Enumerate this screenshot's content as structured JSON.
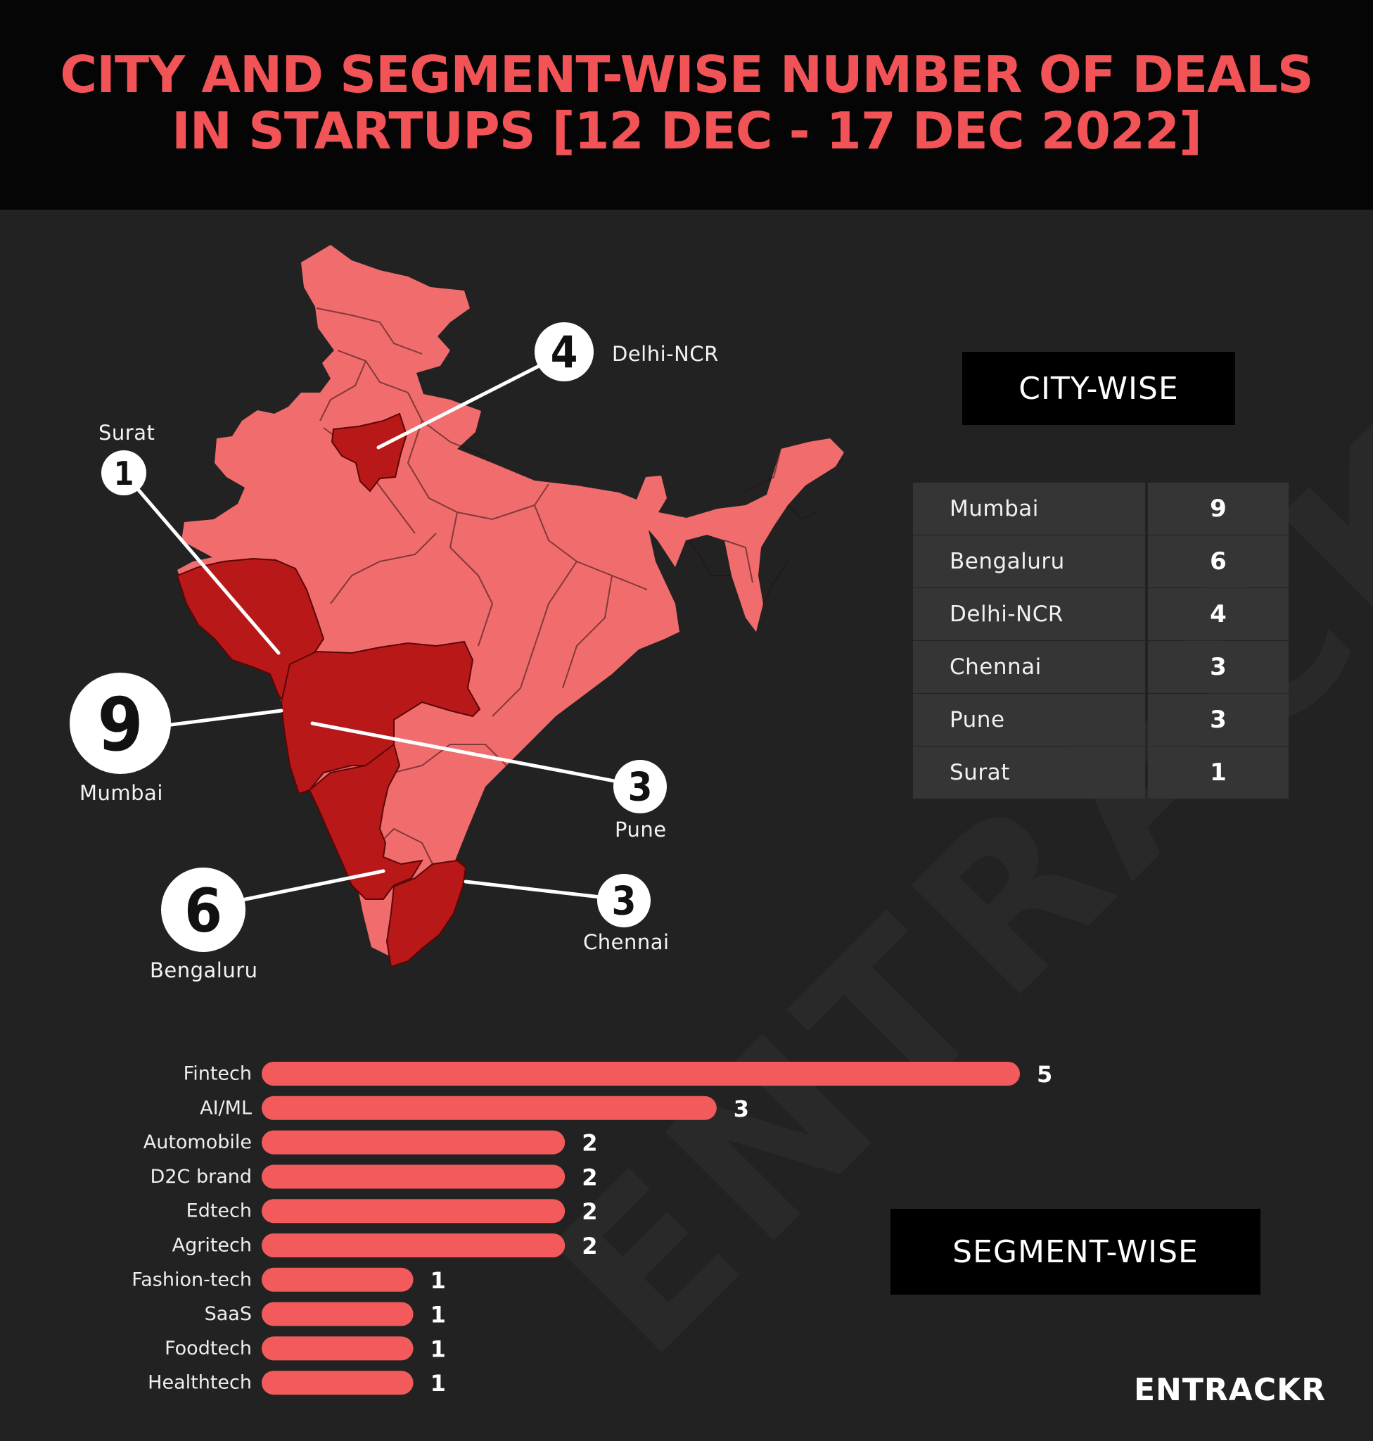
{
  "header": {
    "title_line1": "CITY AND SEGMENT-WISE NUMBER OF DEALS",
    "title_line2": "IN STARTUPS [12 DEC - 17 DEC 2022]"
  },
  "colors": {
    "title": "#f15356",
    "map_base": "#f16c6d",
    "map_highlight": "#b91818",
    "bar": "#f25a5b",
    "background": "#222222"
  },
  "map": {
    "bubbles": [
      {
        "city": "Delhi-NCR",
        "value": "4"
      },
      {
        "city": "Surat",
        "value": "1"
      },
      {
        "city": "Mumbai",
        "value": "9"
      },
      {
        "city": "Pune",
        "value": "3"
      },
      {
        "city": "Bengaluru",
        "value": "6"
      },
      {
        "city": "Chennai",
        "value": "3"
      }
    ]
  },
  "city_panel": {
    "label": "CITY-WISE",
    "rows": [
      {
        "city": "Mumbai",
        "value": "9"
      },
      {
        "city": "Bengaluru",
        "value": "6"
      },
      {
        "city": "Delhi-NCR",
        "value": "4"
      },
      {
        "city": "Chennai",
        "value": "3"
      },
      {
        "city": "Pune",
        "value": "3"
      },
      {
        "city": "Surat",
        "value": "1"
      }
    ]
  },
  "segment_panel": {
    "label": "SEGMENT-WISE"
  },
  "chart_data": [
    {
      "type": "table",
      "title": "CITY-WISE",
      "categories": [
        "Mumbai",
        "Bengaluru",
        "Delhi-NCR",
        "Chennai",
        "Pune",
        "Surat"
      ],
      "values": [
        9,
        6,
        4,
        3,
        3,
        1
      ]
    },
    {
      "type": "bar",
      "orientation": "horizontal",
      "title": "SEGMENT-WISE",
      "categories": [
        "Fintech",
        "AI/ML",
        "Automobile",
        "D2C brand",
        "Edtech",
        "Agritech",
        "Fashion-tech",
        "SaaS",
        "Foodtech",
        "Healthtech"
      ],
      "values": [
        5,
        3,
        2,
        2,
        2,
        2,
        1,
        1,
        1,
        1
      ],
      "xlim": [
        0,
        5
      ],
      "grid": false,
      "data_labels": true
    }
  ],
  "brand": "ENTRACKR",
  "watermark": "ENTRACKR"
}
